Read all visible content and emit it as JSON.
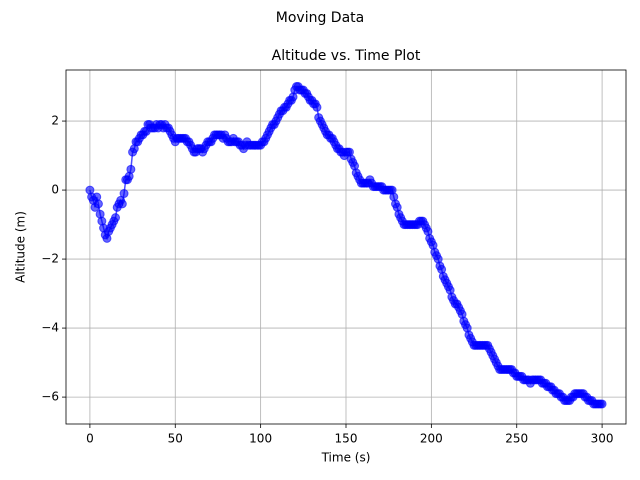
{
  "chart_data": {
    "type": "line",
    "suptitle": "Moving Data",
    "title": "Altitude vs. Time Plot",
    "xlabel": "Time (s)",
    "ylabel": "Altitude (m)",
    "color": "#0000ff",
    "grid": true,
    "xlim": [
      -14,
      314
    ],
    "ylim": [
      -6.78,
      3.48
    ],
    "xticks": [
      0,
      50,
      100,
      150,
      200,
      250,
      300
    ],
    "yticks": [
      {
        "value": -6,
        "label": "−6"
      },
      {
        "value": -4,
        "label": "−4"
      },
      {
        "value": -2,
        "label": "−2"
      },
      0,
      2
    ],
    "x": [
      0,
      1,
      2,
      3,
      4,
      5,
      6,
      7,
      8,
      9,
      10,
      11,
      12,
      13,
      14,
      15,
      16,
      17,
      18,
      19,
      20,
      21,
      22,
      23,
      24,
      25,
      26,
      27,
      28,
      29,
      30,
      31,
      32,
      33,
      34,
      35,
      36,
      37,
      38,
      39,
      40,
      41,
      42,
      43,
      44,
      45,
      46,
      47,
      48,
      49,
      50,
      51,
      52,
      53,
      54,
      55,
      56,
      57,
      58,
      59,
      60,
      61,
      62,
      63,
      64,
      65,
      66,
      67,
      68,
      69,
      70,
      71,
      72,
      73,
      74,
      75,
      76,
      77,
      78,
      79,
      80,
      81,
      82,
      83,
      84,
      85,
      86,
      87,
      88,
      89,
      90,
      91,
      92,
      93,
      94,
      95,
      96,
      97,
      98,
      99,
      100,
      101,
      102,
      103,
      104,
      105,
      106,
      107,
      108,
      109,
      110,
      111,
      112,
      113,
      114,
      115,
      116,
      117,
      118,
      119,
      120,
      121,
      122,
      123,
      124,
      125,
      126,
      127,
      128,
      129,
      130,
      131,
      132,
      133,
      134,
      135,
      136,
      137,
      138,
      139,
      140,
      141,
      142,
      143,
      144,
      145,
      146,
      147,
      148,
      149,
      150,
      151,
      152,
      153,
      154,
      155,
      156,
      157,
      158,
      159,
      160,
      161,
      162,
      163,
      164,
      165,
      166,
      167,
      168,
      169,
      170,
      171,
      172,
      173,
      174,
      175,
      176,
      177,
      178,
      179,
      180,
      181,
      182,
      183,
      184,
      185,
      186,
      187,
      188,
      189,
      190,
      191,
      192,
      193,
      194,
      195,
      196,
      197,
      198,
      199,
      200,
      201,
      202,
      203,
      204,
      205,
      206,
      207,
      208,
      209,
      210,
      211,
      212,
      213,
      214,
      215,
      216,
      217,
      218,
      219,
      220,
      221,
      222,
      223,
      224,
      225,
      226,
      227,
      228,
      229,
      230,
      231,
      232,
      233,
      234,
      235,
      236,
      237,
      238,
      239,
      240,
      241,
      242,
      243,
      244,
      245,
      246,
      247,
      248,
      249,
      250,
      251,
      252,
      253,
      254,
      255,
      256,
      257,
      258,
      259,
      260,
      261,
      262,
      263,
      264,
      265,
      266,
      267,
      268,
      269,
      270,
      271,
      272,
      273,
      274,
      275,
      276,
      277,
      278,
      279,
      280,
      281,
      282,
      283,
      284,
      285,
      286,
      287,
      288,
      289,
      290,
      291,
      292,
      293,
      294,
      295,
      296,
      297,
      298,
      299,
      300
    ],
    "values": [
      0,
      -0.2,
      -0.3,
      -0.5,
      -0.2,
      -0.4,
      -0.7,
      -0.9,
      -1.1,
      -1.3,
      -1.4,
      -1.2,
      -1.1,
      -1.0,
      -0.9,
      -0.8,
      -0.5,
      -0.4,
      -0.3,
      -0.4,
      -0.1,
      0.3,
      0.3,
      0.4,
      0.6,
      1.1,
      1.2,
      1.4,
      1.4,
      1.5,
      1.6,
      1.6,
      1.7,
      1.7,
      1.9,
      1.9,
      1.8,
      1.8,
      1.8,
      1.9,
      1.8,
      1.9,
      1.9,
      1.8,
      1.9,
      1.8,
      1.8,
      1.7,
      1.6,
      1.5,
      1.4,
      1.5,
      1.5,
      1.5,
      1.5,
      1.5,
      1.5,
      1.4,
      1.4,
      1.3,
      1.2,
      1.1,
      1.1,
      1.2,
      1.2,
      1.2,
      1.1,
      1.2,
      1.3,
      1.4,
      1.4,
      1.4,
      1.5,
      1.6,
      1.6,
      1.6,
      1.6,
      1.6,
      1.5,
      1.6,
      1.5,
      1.4,
      1.4,
      1.4,
      1.5,
      1.4,
      1.4,
      1.4,
      1.3,
      1.3,
      1.2,
      1.3,
      1.4,
      1.3,
      1.3,
      1.3,
      1.3,
      1.3,
      1.3,
      1.3,
      1.3,
      1.4,
      1.4,
      1.5,
      1.6,
      1.7,
      1.8,
      1.9,
      1.9,
      2.0,
      2.1,
      2.2,
      2.3,
      2.3,
      2.4,
      2.4,
      2.5,
      2.6,
      2.6,
      2.7,
      2.9,
      3.0,
      3.0,
      2.9,
      2.9,
      2.9,
      2.8,
      2.8,
      2.7,
      2.6,
      2.6,
      2.5,
      2.5,
      2.4,
      2.1,
      2.0,
      1.9,
      1.8,
      1.7,
      1.6,
      1.6,
      1.5,
      1.5,
      1.4,
      1.3,
      1.2,
      1.2,
      1.1,
      1.1,
      1.0,
      1.1,
      1.1,
      1.1,
      0.9,
      0.8,
      0.7,
      0.5,
      0.4,
      0.3,
      0.2,
      0.2,
      0.2,
      0.2,
      0.2,
      0.3,
      0.2,
      0.1,
      0.1,
      0.1,
      0.1,
      0.1,
      0.1,
      0,
      0,
      0,
      0,
      0,
      0,
      -0.2,
      -0.4,
      -0.5,
      -0.7,
      -0.8,
      -0.9,
      -1.0,
      -1.0,
      -1.0,
      -1.0,
      -1.0,
      -1.0,
      -1.0,
      -1.0,
      -1.0,
      -0.9,
      -0.9,
      -0.9,
      -1.0,
      -1.1,
      -1.2,
      -1.4,
      -1.5,
      -1.6,
      -1.8,
      -1.9,
      -2.0,
      -2.2,
      -2.3,
      -2.5,
      -2.6,
      -2.7,
      -2.8,
      -2.9,
      -3.1,
      -3.2,
      -3.3,
      -3.3,
      -3.4,
      -3.5,
      -3.6,
      -3.8,
      -3.9,
      -4.0,
      -4.2,
      -4.3,
      -4.4,
      -4.5,
      -4.5,
      -4.5,
      -4.5,
      -4.5,
      -4.5,
      -4.5,
      -4.5,
      -4.5,
      -4.6,
      -4.7,
      -4.8,
      -4.9,
      -5.0,
      -5.1,
      -5.2,
      -5.2,
      -5.2,
      -5.2,
      -5.2,
      -5.2,
      -5.2,
      -5.2,
      -5.3,
      -5.3,
      -5.4,
      -5.4,
      -5.4,
      -5.4,
      -5.5,
      -5.5,
      -5.5,
      -5.5,
      -5.6,
      -5.5,
      -5.5,
      -5.5,
      -5.5,
      -5.5,
      -5.5,
      -5.6,
      -5.6,
      -5.6,
      -5.7,
      -5.7,
      -5.7,
      -5.8,
      -5.8,
      -5.9,
      -5.9,
      -5.9,
      -6.0,
      -6.0,
      -6.1,
      -6.1,
      -6.1,
      -6.1,
      -6.0,
      -6.0,
      -5.9,
      -5.9,
      -5.9,
      -5.9,
      -5.9,
      -5.9,
      -6.0,
      -6.0,
      -6.1,
      -6.1,
      -6.1,
      -6.2,
      -6.2,
      -6.2,
      -6.2,
      -6.2,
      -6.2
    ]
  }
}
